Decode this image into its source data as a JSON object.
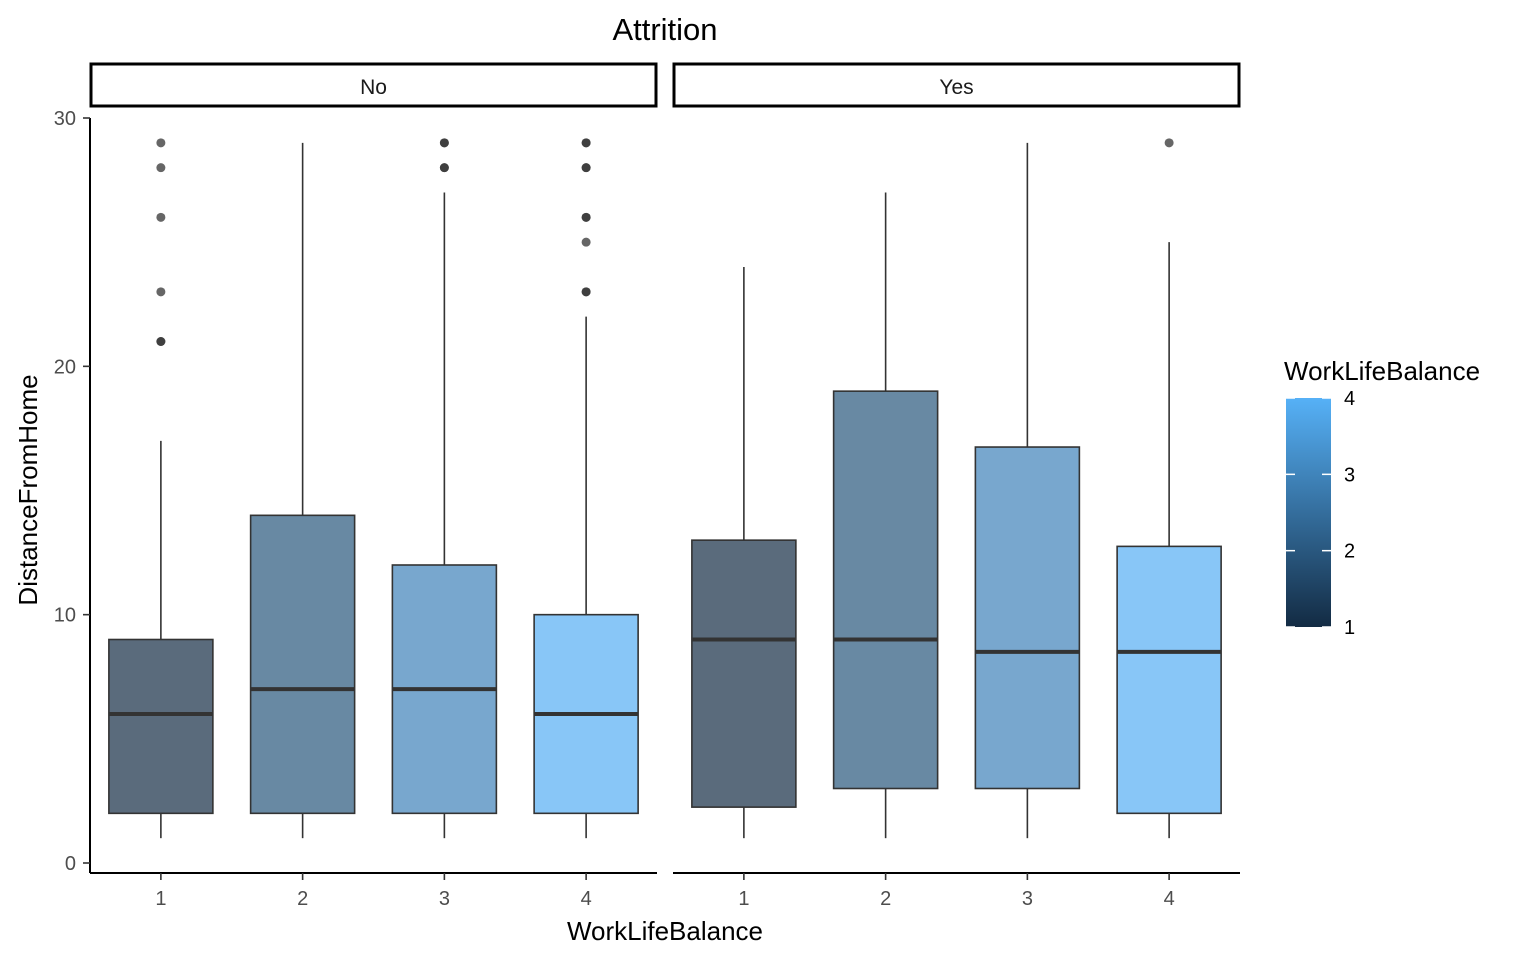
{
  "chart_data": {
    "type": "boxplot",
    "title": "Attrition",
    "xlabel": "WorkLifeBalance",
    "ylabel": "DistanceFromHome",
    "ylim": [
      0,
      30
    ],
    "yticks": [
      0,
      10,
      20,
      30
    ],
    "categories": [
      "1",
      "2",
      "3",
      "4"
    ],
    "facets": [
      {
        "label": "No",
        "boxes": [
          {
            "category": "1",
            "whisker_low": 1,
            "q1": 2,
            "median": 6,
            "q3": 9,
            "whisker_high": 17,
            "outliers": [
              21,
              21,
              23,
              26,
              28,
              29
            ]
          },
          {
            "category": "2",
            "whisker_low": 1,
            "q1": 2,
            "median": 7,
            "q3": 14,
            "whisker_high": 29,
            "outliers": []
          },
          {
            "category": "3",
            "whisker_low": 1,
            "q1": 2,
            "median": 7,
            "q3": 12,
            "whisker_high": 27,
            "outliers": [
              28,
              28,
              29,
              29
            ]
          },
          {
            "category": "4",
            "whisker_low": 1,
            "q1": 2,
            "median": 6,
            "q3": 10,
            "whisker_high": 22,
            "outliers": [
              23,
              23,
              25,
              26,
              26,
              28,
              28,
              29,
              29
            ]
          }
        ]
      },
      {
        "label": "Yes",
        "boxes": [
          {
            "category": "1",
            "whisker_low": 1,
            "q1": 2.25,
            "median": 9,
            "q3": 13,
            "whisker_high": 24,
            "outliers": []
          },
          {
            "category": "2",
            "whisker_low": 1,
            "q1": 3,
            "median": 9,
            "q3": 19,
            "whisker_high": 27,
            "outliers": []
          },
          {
            "category": "3",
            "whisker_low": 1,
            "q1": 3,
            "median": 8.5,
            "q3": 16.75,
            "whisker_high": 29,
            "outliers": []
          },
          {
            "category": "4",
            "whisker_low": 1,
            "q1": 2,
            "median": 8.5,
            "q3": 12.75,
            "whisker_high": 25,
            "outliers": [
              29
            ]
          }
        ]
      }
    ],
    "fill_colors": [
      "#5a6b7c",
      "#6889a3",
      "#78a7ce",
      "#88c6f7"
    ],
    "legend": {
      "title": "WorkLifeBalance",
      "ticks": [
        1,
        2,
        3,
        4
      ],
      "gradient": [
        "#132b43",
        "#56b1f7"
      ]
    }
  }
}
